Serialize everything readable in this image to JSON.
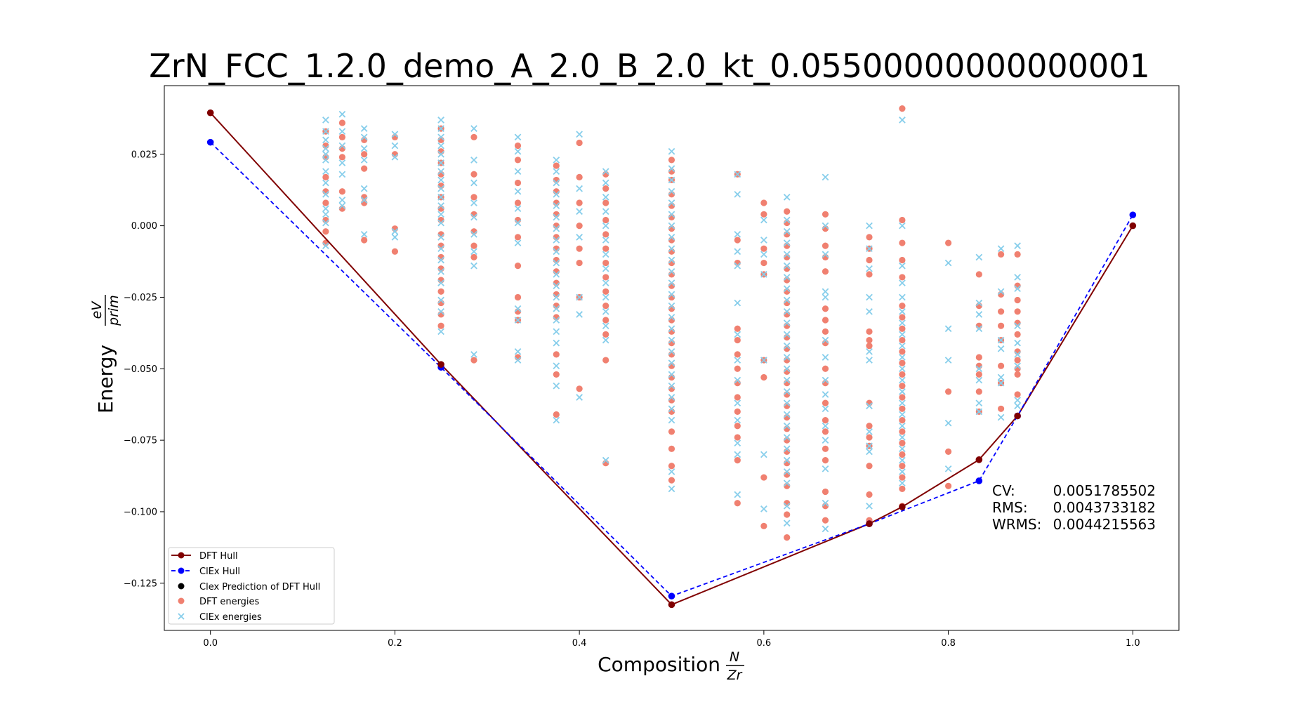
{
  "chart_data": {
    "type": "scatter",
    "title": "ZrN_FCC_1.2.0_demo_A_2.0_B_2.0_kt_0.05500000000000001",
    "xlabel": {
      "main": "Composition",
      "frac_num": "N",
      "frac_den": "Zr"
    },
    "ylabel": {
      "main": "Energy",
      "frac_num": "eV",
      "frac_den": "prim"
    },
    "xlim": [
      -0.05,
      1.05
    ],
    "ylim": [
      -0.1415,
      0.049
    ],
    "xticks": [
      0.0,
      0.2,
      0.4,
      0.6,
      0.8,
      1.0
    ],
    "xtick_labels": [
      "0.0",
      "0.2",
      "0.4",
      "0.6",
      "0.8",
      "1.0"
    ],
    "yticks": [
      -0.125,
      -0.1,
      -0.075,
      -0.05,
      -0.025,
      0.0,
      0.025
    ],
    "ytick_labels": [
      "−0.125",
      "−0.100",
      "−0.075",
      "−0.050",
      "−0.025",
      "0.000",
      "0.025"
    ],
    "grid": false,
    "legend_placement": "lower-left",
    "colors": {
      "dft_hull": "#800000",
      "clex_hull": "#0000ff",
      "clex_pred": "#000000",
      "dft_energies": "#f08070",
      "clex_energies": "#87ceeb"
    },
    "stats": [
      {
        "label": "CV:",
        "value": "0.0051785502"
      },
      {
        "label": "RMS:",
        "value": "0.0043733182"
      },
      {
        "label": "WRMS:",
        "value": "0.0044215563"
      }
    ],
    "series": [
      {
        "name": "DFT Hull",
        "kind": "line",
        "x": [
          0.0,
          0.25,
          0.5,
          0.7143,
          0.75,
          0.8333,
          0.875,
          1.0
        ],
        "y": [
          0.0395,
          -0.0485,
          -0.1325,
          -0.1042,
          -0.0983,
          -0.0818,
          -0.0665,
          0.0
        ]
      },
      {
        "name": "ClEx Hull",
        "kind": "line",
        "x": [
          0.0,
          0.25,
          0.5,
          0.7143,
          0.8333,
          0.875,
          1.0
        ],
        "y": [
          0.0292,
          -0.0495,
          -0.1295,
          -0.1042,
          -0.0892,
          -0.0665,
          0.0038
        ]
      },
      {
        "name": "Clex Prediction of DFT Hull",
        "kind": "points",
        "x": [],
        "y": []
      },
      {
        "name": "DFT energies",
        "kind": "points",
        "columns": [
          {
            "x": 0.125,
            "y": [
              0.033,
              0.028,
              0.024,
              0.017,
              0.012,
              0.008,
              0.002,
              -0.002,
              -0.006
            ]
          },
          {
            "x": 0.1429,
            "y": [
              0.036,
              0.031,
              0.027,
              0.024,
              0.012,
              0.006
            ]
          },
          {
            "x": 0.1667,
            "y": [
              0.03,
              0.025,
              0.02,
              0.01,
              0.008,
              -0.005
            ]
          },
          {
            "x": 0.2,
            "y": [
              0.031,
              0.025,
              -0.001,
              -0.009
            ]
          },
          {
            "x": 0.25,
            "y": [
              0.034,
              0.03,
              0.026,
              0.022,
              0.018,
              0.014,
              0.01,
              0.006,
              0.002,
              -0.003,
              -0.007,
              -0.011,
              -0.015,
              -0.019,
              -0.023,
              -0.027,
              -0.031,
              -0.035
            ]
          },
          {
            "x": 0.2857,
            "y": [
              0.031,
              0.018,
              0.01,
              0.004,
              -0.002,
              -0.007,
              -0.011,
              -0.047
            ]
          },
          {
            "x": 0.3333,
            "y": [
              0.028,
              0.023,
              0.015,
              0.008,
              0.002,
              -0.004,
              -0.014,
              -0.025,
              -0.03,
              -0.033,
              -0.046
            ]
          },
          {
            "x": 0.375,
            "y": [
              0.021,
              0.016,
              0.012,
              0.008,
              0.004,
              0.0,
              -0.004,
              -0.008,
              -0.012,
              -0.016,
              -0.02,
              -0.024,
              -0.028,
              -0.032,
              -0.045,
              -0.052,
              -0.066
            ]
          },
          {
            "x": 0.4,
            "y": [
              0.029,
              0.017,
              0.008,
              0.0,
              -0.008,
              -0.013,
              -0.025,
              -0.057
            ]
          },
          {
            "x": 0.4286,
            "y": [
              0.018,
              0.013,
              0.008,
              0.002,
              -0.003,
              -0.008,
              -0.013,
              -0.018,
              -0.023,
              -0.028,
              -0.033,
              -0.038,
              -0.047,
              -0.083
            ]
          },
          {
            "x": 0.5,
            "y": [
              0.023,
              0.019,
              0.016,
              0.011,
              0.007,
              0.003,
              -0.001,
              -0.005,
              -0.009,
              -0.013,
              -0.017,
              -0.021,
              -0.025,
              -0.029,
              -0.033,
              -0.037,
              -0.041,
              -0.045,
              -0.049,
              -0.053,
              -0.057,
              -0.061,
              -0.065,
              -0.072,
              -0.078,
              -0.084,
              -0.089
            ]
          },
          {
            "x": 0.5714,
            "y": [
              0.018,
              -0.005,
              -0.013,
              -0.036,
              -0.04,
              -0.045,
              -0.05,
              -0.055,
              -0.06,
              -0.065,
              -0.07,
              -0.074,
              -0.082,
              -0.097
            ]
          },
          {
            "x": 0.6,
            "y": [
              0.008,
              0.004,
              -0.008,
              -0.013,
              -0.017,
              -0.047,
              -0.053,
              -0.088,
              -0.105
            ]
          },
          {
            "x": 0.625,
            "y": [
              0.005,
              0.001,
              -0.003,
              -0.007,
              -0.011,
              -0.015,
              -0.019,
              -0.023,
              -0.027,
              -0.031,
              -0.035,
              -0.039,
              -0.043,
              -0.047,
              -0.051,
              -0.055,
              -0.059,
              -0.063,
              -0.067,
              -0.071,
              -0.075,
              -0.079,
              -0.083,
              -0.087,
              -0.091,
              -0.097,
              -0.101,
              -0.109
            ]
          },
          {
            "x": 0.6667,
            "y": [
              0.004,
              -0.001,
              -0.007,
              -0.011,
              -0.016,
              -0.029,
              -0.033,
              -0.037,
              -0.041,
              -0.05,
              -0.055,
              -0.062,
              -0.068,
              -0.072,
              -0.078,
              -0.082,
              -0.093,
              -0.098,
              -0.103
            ]
          },
          {
            "x": 0.7143,
            "y": [
              -0.004,
              -0.008,
              -0.012,
              -0.017,
              -0.037,
              -0.04,
              -0.042,
              -0.062,
              -0.07,
              -0.074,
              -0.077,
              -0.084,
              -0.094,
              -0.103
            ]
          },
          {
            "x": 0.75,
            "y": [
              0.041,
              0.002,
              -0.006,
              -0.012,
              -0.018,
              -0.028,
              -0.032,
              -0.036,
              -0.04,
              -0.044,
              -0.048,
              -0.052,
              -0.056,
              -0.06,
              -0.064,
              -0.068,
              -0.072,
              -0.076,
              -0.08,
              -0.084,
              -0.088,
              -0.092,
              -0.098
            ]
          },
          {
            "x": 0.8,
            "y": [
              -0.006,
              -0.058,
              -0.079,
              -0.091
            ]
          },
          {
            "x": 0.8333,
            "y": [
              -0.017,
              -0.028,
              -0.035,
              -0.046,
              -0.049,
              -0.052,
              -0.058,
              -0.065
            ]
          },
          {
            "x": 0.8571,
            "y": [
              -0.01,
              -0.024,
              -0.03,
              -0.035,
              -0.04,
              -0.049,
              -0.055,
              -0.064
            ]
          },
          {
            "x": 0.875,
            "y": [
              -0.01,
              -0.021,
              -0.026,
              -0.03,
              -0.034,
              -0.038,
              -0.044,
              -0.047,
              -0.05,
              -0.052,
              -0.059
            ]
          }
        ]
      },
      {
        "name": "ClEx energies",
        "kind": "points",
        "columns": [
          {
            "x": 0.125,
            "y": [
              0.037,
              0.033,
              0.03,
              0.027,
              0.025,
              0.023,
              0.019,
              0.015,
              0.011,
              0.006,
              0.004,
              0.001,
              -0.007
            ]
          },
          {
            "x": 0.1429,
            "y": [
              0.039,
              0.033,
              0.028,
              0.022,
              0.018,
              0.009,
              0.007
            ]
          },
          {
            "x": 0.1667,
            "y": [
              0.034,
              0.031,
              0.027,
              0.023,
              0.013,
              0.009,
              -0.003
            ]
          },
          {
            "x": 0.2,
            "y": [
              0.032,
              0.028,
              0.024,
              -0.002,
              -0.004
            ]
          },
          {
            "x": 0.25,
            "y": [
              0.037,
              0.034,
              0.031,
              0.028,
              0.025,
              0.022,
              0.019,
              0.016,
              0.013,
              0.01,
              0.007,
              0.004,
              0.001,
              -0.004,
              -0.008,
              -0.012,
              -0.016,
              -0.02,
              -0.026,
              -0.03,
              -0.037
            ]
          },
          {
            "x": 0.2857,
            "y": [
              0.034,
              0.023,
              0.015,
              0.008,
              0.003,
              -0.003,
              -0.009,
              -0.014,
              -0.045
            ]
          },
          {
            "x": 0.3333,
            "y": [
              0.031,
              0.026,
              0.019,
              0.012,
              0.006,
              0.001,
              -0.006,
              -0.029,
              -0.033,
              -0.044,
              -0.047
            ]
          },
          {
            "x": 0.375,
            "y": [
              0.023,
              0.019,
              0.015,
              0.011,
              0.007,
              0.003,
              -0.001,
              -0.005,
              -0.009,
              -0.013,
              -0.017,
              -0.021,
              -0.025,
              -0.029,
              -0.033,
              -0.037,
              -0.041,
              -0.049,
              -0.056,
              -0.068
            ]
          },
          {
            "x": 0.4,
            "y": [
              0.032,
              0.013,
              0.005,
              -0.004,
              -0.025,
              -0.031,
              -0.06
            ]
          },
          {
            "x": 0.4286,
            "y": [
              0.019,
              0.015,
              0.01,
              0.005,
              0.0,
              -0.005,
              -0.01,
              -0.015,
              -0.02,
              -0.025,
              -0.03,
              -0.035,
              -0.04,
              -0.082
            ]
          },
          {
            "x": 0.5,
            "y": [
              0.026,
              0.02,
              0.016,
              0.012,
              0.008,
              0.004,
              0.0,
              -0.004,
              -0.008,
              -0.012,
              -0.016,
              -0.02,
              -0.024,
              -0.028,
              -0.032,
              -0.036,
              -0.04,
              -0.044,
              -0.048,
              -0.052,
              -0.056,
              -0.06,
              -0.064,
              -0.068,
              -0.086,
              -0.092
            ]
          },
          {
            "x": 0.5714,
            "y": [
              0.018,
              0.011,
              -0.003,
              -0.009,
              -0.014,
              -0.027,
              -0.038,
              -0.047,
              -0.054,
              -0.062,
              -0.068,
              -0.076,
              -0.08,
              -0.094
            ]
          },
          {
            "x": 0.6,
            "y": [
              0.002,
              -0.005,
              -0.01,
              -0.017,
              -0.047,
              -0.08,
              -0.099
            ]
          },
          {
            "x": 0.625,
            "y": [
              0.01,
              0.002,
              -0.002,
              -0.006,
              -0.01,
              -0.014,
              -0.018,
              -0.022,
              -0.026,
              -0.03,
              -0.034,
              -0.038,
              -0.042,
              -0.046,
              -0.05,
              -0.054,
              -0.058,
              -0.062,
              -0.066,
              -0.07,
              -0.074,
              -0.078,
              -0.082,
              -0.086,
              -0.09,
              -0.098,
              -0.104
            ]
          },
          {
            "x": 0.6667,
            "y": [
              0.017,
              0.0,
              -0.01,
              -0.023,
              -0.025,
              -0.04,
              -0.046,
              -0.054,
              -0.059,
              -0.064,
              -0.07,
              -0.075,
              -0.085,
              -0.097,
              -0.106
            ]
          },
          {
            "x": 0.7143,
            "y": [
              0.0,
              -0.008,
              -0.015,
              -0.025,
              -0.03,
              -0.044,
              -0.047,
              -0.063,
              -0.072,
              -0.077,
              -0.079,
              -0.098
            ]
          },
          {
            "x": 0.75,
            "y": [
              0.037,
              0.0,
              -0.014,
              -0.02,
              -0.025,
              -0.03,
              -0.034,
              -0.038,
              -0.042,
              -0.046,
              -0.05,
              -0.054,
              -0.058,
              -0.062,
              -0.066,
              -0.07,
              -0.074,
              -0.078,
              -0.082,
              -0.086,
              -0.09
            ]
          },
          {
            "x": 0.8,
            "y": [
              -0.013,
              -0.036,
              -0.047,
              -0.069,
              -0.085
            ]
          },
          {
            "x": 0.8333,
            "y": [
              -0.011,
              -0.027,
              -0.031,
              -0.036,
              -0.05,
              -0.054,
              -0.062,
              -0.065
            ]
          },
          {
            "x": 0.8571,
            "y": [
              -0.008,
              -0.023,
              -0.04,
              -0.043,
              -0.053,
              -0.055,
              -0.067
            ]
          },
          {
            "x": 0.875,
            "y": [
              -0.007,
              -0.018,
              -0.022,
              -0.035,
              -0.041,
              -0.045,
              -0.049,
              -0.061,
              -0.063
            ]
          }
        ]
      }
    ]
  }
}
